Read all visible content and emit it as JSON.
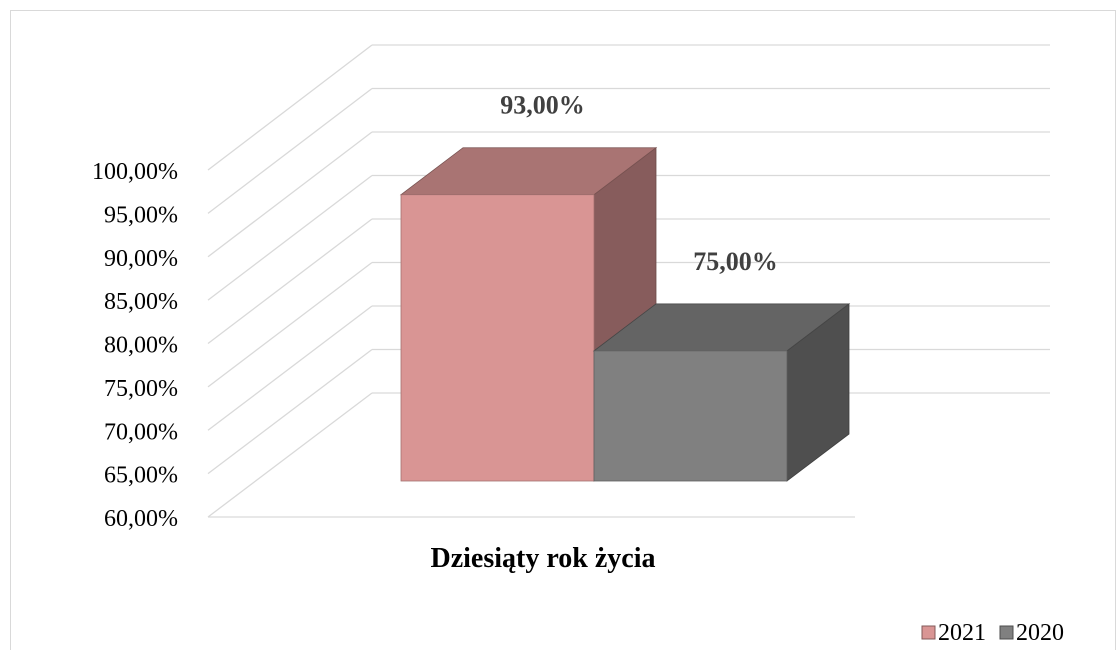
{
  "chart_data": {
    "type": "bar",
    "style": "3d-clustered-column",
    "categories": [
      "Dziesiąty rok życia"
    ],
    "series": [
      {
        "name": "2021",
        "values": [
          0.93
        ],
        "label": "93,00%",
        "color": "#d99594",
        "legend_marker": "■"
      },
      {
        "name": "2020",
        "values": [
          0.75
        ],
        "label": "75,00%",
        "color": "#808080",
        "legend_marker": "■"
      }
    ],
    "ylim": [
      0.6,
      1.0
    ],
    "yticks": [
      0.6,
      0.65,
      0.7,
      0.75,
      0.8,
      0.85,
      0.9,
      0.95,
      1.0
    ],
    "ytick_labels": [
      "60,00%",
      "65,00%",
      "70,00%",
      "75,00%",
      "80,00%",
      "85,00%",
      "90,00%",
      "95,00%",
      "100,00%"
    ],
    "grid": true,
    "legend_position": "bottom-right",
    "title": "",
    "xlabel": "",
    "ylabel": ""
  }
}
